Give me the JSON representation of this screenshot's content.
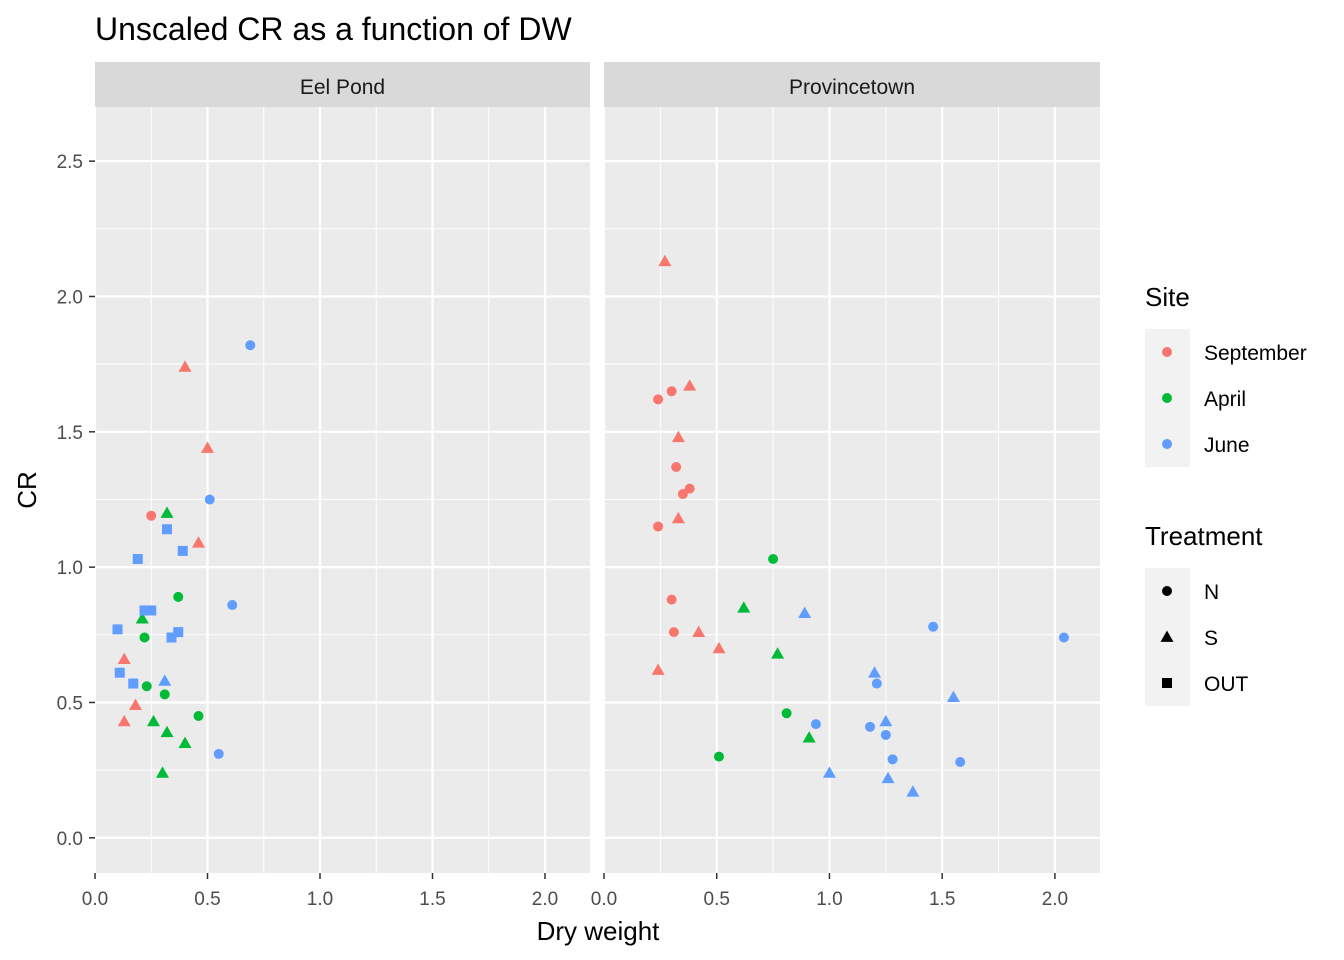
{
  "chart_data": {
    "type": "scatter",
    "title": "Unscaled CR as a function of DW",
    "xlabel": "Dry weight",
    "ylabel": "CR",
    "xlim": [
      0,
      2.2
    ],
    "ylim": [
      -0.13,
      2.7
    ],
    "x_ticks": [
      "0.0",
      "0.5",
      "1.0",
      "1.5",
      "2.0"
    ],
    "x_tick_values": [
      0,
      0.5,
      1.0,
      1.5,
      2.0
    ],
    "y_ticks": [
      "0.0",
      "0.5",
      "1.0",
      "1.5",
      "2.0",
      "2.5"
    ],
    "y_tick_values": [
      0,
      0.5,
      1.0,
      1.5,
      2.0,
      2.5
    ],
    "grid": true,
    "legend_placement": "right",
    "facets": [
      "Eel Pond",
      "Provincetown"
    ],
    "legend_site": {
      "title": "Site",
      "entries": [
        {
          "label": "September",
          "color": "#F8766D"
        },
        {
          "label": "April",
          "color": "#00BA38"
        },
        {
          "label": "June",
          "color": "#619CFF"
        }
      ]
    },
    "legend_treatment": {
      "title": "Treatment",
      "entries": [
        {
          "label": "N",
          "shape": "circle"
        },
        {
          "label": "S",
          "shape": "triangle"
        },
        {
          "label": "OUT",
          "shape": "square"
        }
      ]
    },
    "points": [
      {
        "panel": 0,
        "site": "September",
        "treatment": "N",
        "x": 0.25,
        "y": 1.19
      },
      {
        "panel": 0,
        "site": "September",
        "treatment": "S",
        "x": 0.4,
        "y": 1.74
      },
      {
        "panel": 0,
        "site": "September",
        "treatment": "S",
        "x": 0.5,
        "y": 1.44
      },
      {
        "panel": 0,
        "site": "September",
        "treatment": "S",
        "x": 0.46,
        "y": 1.09
      },
      {
        "panel": 0,
        "site": "September",
        "treatment": "S",
        "x": 0.13,
        "y": 0.66
      },
      {
        "panel": 0,
        "site": "September",
        "treatment": "S",
        "x": 0.18,
        "y": 0.49
      },
      {
        "panel": 0,
        "site": "September",
        "treatment": "S",
        "x": 0.13,
        "y": 0.43
      },
      {
        "panel": 0,
        "site": "April",
        "treatment": "S",
        "x": 0.32,
        "y": 1.2
      },
      {
        "panel": 0,
        "site": "April",
        "treatment": "N",
        "x": 0.37,
        "y": 0.89
      },
      {
        "panel": 0,
        "site": "April",
        "treatment": "S",
        "x": 0.21,
        "y": 0.81
      },
      {
        "panel": 0,
        "site": "April",
        "treatment": "N",
        "x": 0.22,
        "y": 0.74
      },
      {
        "panel": 0,
        "site": "April",
        "treatment": "N",
        "x": 0.23,
        "y": 0.56
      },
      {
        "panel": 0,
        "site": "April",
        "treatment": "N",
        "x": 0.31,
        "y": 0.53
      },
      {
        "panel": 0,
        "site": "April",
        "treatment": "N",
        "x": 0.46,
        "y": 0.45
      },
      {
        "panel": 0,
        "site": "April",
        "treatment": "S",
        "x": 0.26,
        "y": 0.43
      },
      {
        "panel": 0,
        "site": "April",
        "treatment": "S",
        "x": 0.32,
        "y": 0.39
      },
      {
        "panel": 0,
        "site": "April",
        "treatment": "S",
        "x": 0.4,
        "y": 0.35
      },
      {
        "panel": 0,
        "site": "April",
        "treatment": "S",
        "x": 0.3,
        "y": 0.24
      },
      {
        "panel": 0,
        "site": "June",
        "treatment": "N",
        "x": 0.69,
        "y": 1.82
      },
      {
        "panel": 0,
        "site": "June",
        "treatment": "N",
        "x": 0.51,
        "y": 1.25
      },
      {
        "panel": 0,
        "site": "June",
        "treatment": "N",
        "x": 0.61,
        "y": 0.86
      },
      {
        "panel": 0,
        "site": "June",
        "treatment": "N",
        "x": 0.55,
        "y": 0.31
      },
      {
        "panel": 0,
        "site": "June",
        "treatment": "S",
        "x": 0.31,
        "y": 0.58
      },
      {
        "panel": 0,
        "site": "June",
        "treatment": "OUT",
        "x": 0.32,
        "y": 1.14
      },
      {
        "panel": 0,
        "site": "June",
        "treatment": "OUT",
        "x": 0.19,
        "y": 1.03
      },
      {
        "panel": 0,
        "site": "June",
        "treatment": "OUT",
        "x": 0.39,
        "y": 1.06
      },
      {
        "panel": 0,
        "site": "June",
        "treatment": "OUT",
        "x": 0.22,
        "y": 0.84
      },
      {
        "panel": 0,
        "site": "June",
        "treatment": "OUT",
        "x": 0.25,
        "y": 0.84
      },
      {
        "panel": 0,
        "site": "June",
        "treatment": "OUT",
        "x": 0.1,
        "y": 0.77
      },
      {
        "panel": 0,
        "site": "June",
        "treatment": "OUT",
        "x": 0.37,
        "y": 0.76
      },
      {
        "panel": 0,
        "site": "June",
        "treatment": "OUT",
        "x": 0.34,
        "y": 0.74
      },
      {
        "panel": 0,
        "site": "June",
        "treatment": "OUT",
        "x": 0.11,
        "y": 0.61
      },
      {
        "panel": 0,
        "site": "June",
        "treatment": "OUT",
        "x": 0.17,
        "y": 0.57
      },
      {
        "panel": 1,
        "site": "September",
        "treatment": "S",
        "x": 0.27,
        "y": 2.13
      },
      {
        "panel": 1,
        "site": "September",
        "treatment": "N",
        "x": 0.24,
        "y": 1.62
      },
      {
        "panel": 1,
        "site": "September",
        "treatment": "N",
        "x": 0.3,
        "y": 1.65
      },
      {
        "panel": 1,
        "site": "September",
        "treatment": "S",
        "x": 0.38,
        "y": 1.67
      },
      {
        "panel": 1,
        "site": "September",
        "treatment": "S",
        "x": 0.33,
        "y": 1.48
      },
      {
        "panel": 1,
        "site": "September",
        "treatment": "N",
        "x": 0.32,
        "y": 1.37
      },
      {
        "panel": 1,
        "site": "September",
        "treatment": "N",
        "x": 0.38,
        "y": 1.29
      },
      {
        "panel": 1,
        "site": "September",
        "treatment": "N",
        "x": 0.35,
        "y": 1.27
      },
      {
        "panel": 1,
        "site": "September",
        "treatment": "S",
        "x": 0.33,
        "y": 1.18
      },
      {
        "panel": 1,
        "site": "September",
        "treatment": "N",
        "x": 0.24,
        "y": 1.15
      },
      {
        "panel": 1,
        "site": "September",
        "treatment": "N",
        "x": 0.3,
        "y": 0.88
      },
      {
        "panel": 1,
        "site": "September",
        "treatment": "N",
        "x": 0.31,
        "y": 0.76
      },
      {
        "panel": 1,
        "site": "September",
        "treatment": "S",
        "x": 0.42,
        "y": 0.76
      },
      {
        "panel": 1,
        "site": "September",
        "treatment": "S",
        "x": 0.51,
        "y": 0.7
      },
      {
        "panel": 1,
        "site": "September",
        "treatment": "S",
        "x": 0.24,
        "y": 0.62
      },
      {
        "panel": 1,
        "site": "April",
        "treatment": "N",
        "x": 0.75,
        "y": 1.03
      },
      {
        "panel": 1,
        "site": "April",
        "treatment": "S",
        "x": 0.62,
        "y": 0.85
      },
      {
        "panel": 1,
        "site": "April",
        "treatment": "S",
        "x": 0.77,
        "y": 0.68
      },
      {
        "panel": 1,
        "site": "April",
        "treatment": "N",
        "x": 0.81,
        "y": 0.46
      },
      {
        "panel": 1,
        "site": "April",
        "treatment": "S",
        "x": 0.91,
        "y": 0.37
      },
      {
        "panel": 1,
        "site": "April",
        "treatment": "N",
        "x": 0.51,
        "y": 0.3
      },
      {
        "panel": 1,
        "site": "June",
        "treatment": "S",
        "x": 0.89,
        "y": 0.83
      },
      {
        "panel": 1,
        "site": "June",
        "treatment": "N",
        "x": 1.46,
        "y": 0.78
      },
      {
        "panel": 1,
        "site": "June",
        "treatment": "N",
        "x": 2.04,
        "y": 0.74
      },
      {
        "panel": 1,
        "site": "June",
        "treatment": "S",
        "x": 1.2,
        "y": 0.61
      },
      {
        "panel": 1,
        "site": "June",
        "treatment": "N",
        "x": 1.21,
        "y": 0.57
      },
      {
        "panel": 1,
        "site": "June",
        "treatment": "S",
        "x": 1.55,
        "y": 0.52
      },
      {
        "panel": 1,
        "site": "June",
        "treatment": "N",
        "x": 0.94,
        "y": 0.42
      },
      {
        "panel": 1,
        "site": "June",
        "treatment": "S",
        "x": 1.25,
        "y": 0.43
      },
      {
        "panel": 1,
        "site": "June",
        "treatment": "N",
        "x": 1.18,
        "y": 0.41
      },
      {
        "panel": 1,
        "site": "June",
        "treatment": "N",
        "x": 1.25,
        "y": 0.38
      },
      {
        "panel": 1,
        "site": "June",
        "treatment": "N",
        "x": 1.28,
        "y": 0.29
      },
      {
        "panel": 1,
        "site": "June",
        "treatment": "N",
        "x": 1.58,
        "y": 0.28
      },
      {
        "panel": 1,
        "site": "June",
        "treatment": "S",
        "x": 1.0,
        "y": 0.24
      },
      {
        "panel": 1,
        "site": "June",
        "treatment": "S",
        "x": 1.26,
        "y": 0.22
      },
      {
        "panel": 1,
        "site": "June",
        "treatment": "S",
        "x": 1.37,
        "y": 0.17
      }
    ]
  }
}
